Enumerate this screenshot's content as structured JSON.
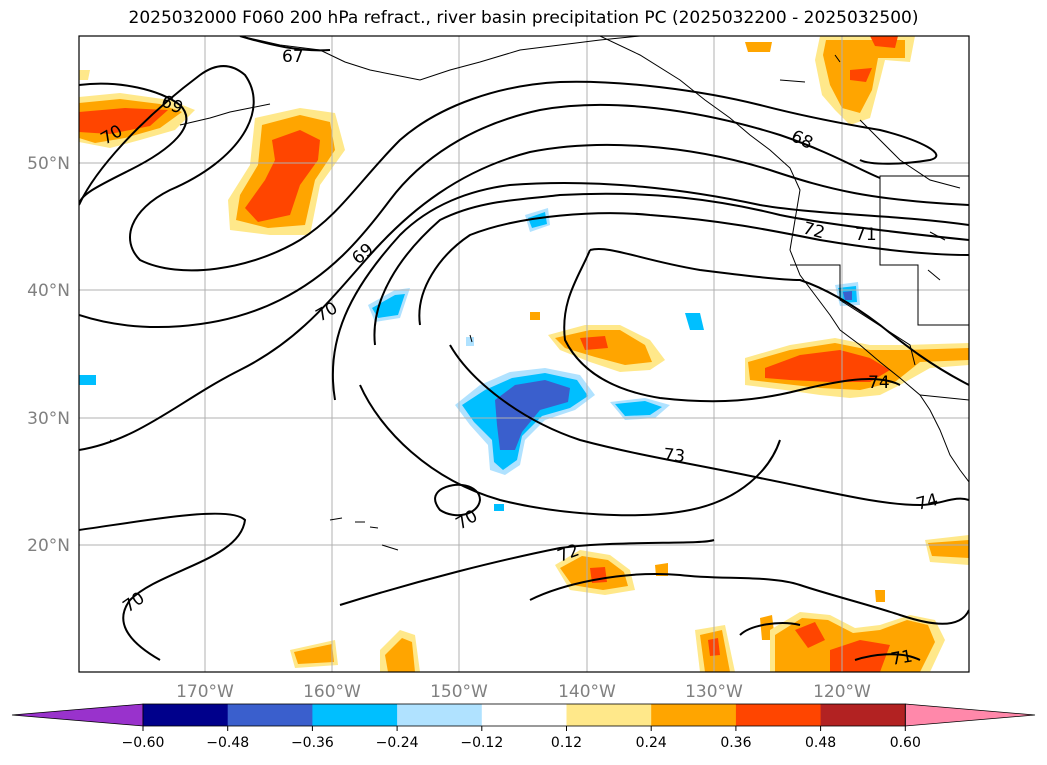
{
  "title": "2025032000 F060 200 hPa refract., river basin precipitation PC (2025032200 - 2025032500)",
  "map": {
    "lon_labels": [
      "170°W",
      "160°W",
      "150°W",
      "140°W",
      "130°W",
      "120°W"
    ],
    "lat_labels": [
      "50°N",
      "40°N",
      "30°N",
      "20°N"
    ],
    "contour_labels": [
      "67",
      "69",
      "70",
      "68",
      "72",
      "71",
      "69",
      "70",
      "74",
      "73",
      "74",
      "70",
      "72",
      "70",
      "71"
    ]
  },
  "colorbar": {
    "ticks": [
      "−0.60",
      "−0.48",
      "−0.36",
      "−0.24",
      "−0.12",
      "0.12",
      "0.24",
      "0.36",
      "0.48",
      "0.60"
    ],
    "colors": [
      "#9932cc",
      "#00008b",
      "#3a5fcd",
      "#00bfff",
      "#b0e2ff",
      "#ffffff",
      "#ffe88a",
      "#ffa500",
      "#ff4500",
      "#b22222",
      "#ff88aa"
    ]
  }
}
